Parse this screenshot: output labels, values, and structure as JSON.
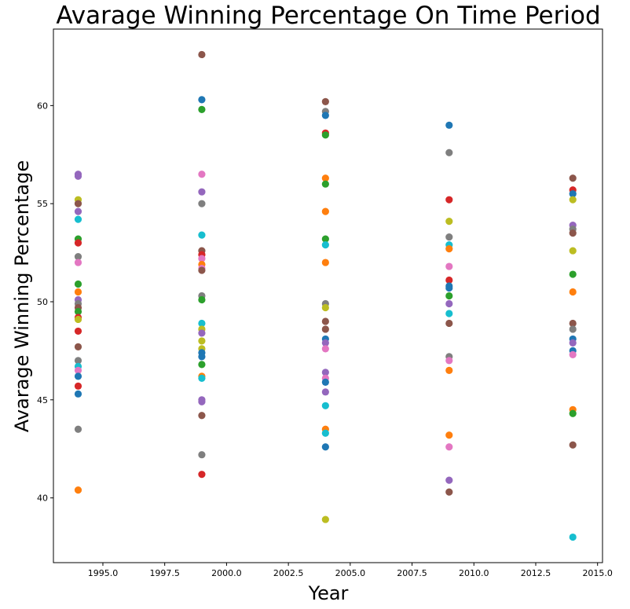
{
  "chart_data": {
    "type": "scatter",
    "title": "Avarage Winning Percentage On Time Period",
    "xlabel": "Year",
    "ylabel": "Avarage Winning Percentage",
    "xlim": [
      1993.0,
      2015.2
    ],
    "ylim": [
      36.7,
      63.9
    ],
    "xticks": [
      1995.0,
      1997.5,
      2000.0,
      2002.5,
      2005.0,
      2007.5,
      2010.0,
      2012.5,
      2015.0
    ],
    "xtick_labels": [
      "1995.0",
      "1997.5",
      "2000.0",
      "2002.5",
      "2005.0",
      "2007.5",
      "2010.0",
      "2012.5",
      "2015.0"
    ],
    "yticks": [
      40,
      45,
      50,
      55,
      60
    ],
    "ytick_labels": [
      "40",
      "45",
      "50",
      "55",
      "60"
    ],
    "grid": false,
    "palette": [
      "#1f77b4",
      "#ff7f0e",
      "#2ca02c",
      "#d62728",
      "#9467bd",
      "#8c564b",
      "#e377c2",
      "#7f7f7f",
      "#bcbd22",
      "#17becf"
    ],
    "groups": [
      {
        "x": 1994,
        "points": [
          {
            "y": 56.5,
            "color": "#9467bd"
          },
          {
            "y": 56.4,
            "color": "#9467bd"
          },
          {
            "y": 55.2,
            "color": "#bcbd22"
          },
          {
            "y": 55.0,
            "color": "#8c564b"
          },
          {
            "y": 54.6,
            "color": "#9467bd"
          },
          {
            "y": 54.2,
            "color": "#17becf"
          },
          {
            "y": 53.2,
            "color": "#2ca02c"
          },
          {
            "y": 53.0,
            "color": "#d62728"
          },
          {
            "y": 52.3,
            "color": "#7f7f7f"
          },
          {
            "y": 52.0,
            "color": "#e377c2"
          },
          {
            "y": 50.9,
            "color": "#2ca02c"
          },
          {
            "y": 50.5,
            "color": "#ff7f0e"
          },
          {
            "y": 50.1,
            "color": "#9467bd"
          },
          {
            "y": 49.9,
            "color": "#7f7f7f"
          },
          {
            "y": 49.7,
            "color": "#8c564b"
          },
          {
            "y": 49.5,
            "color": "#2ca02c"
          },
          {
            "y": 49.2,
            "color": "#d62728"
          },
          {
            "y": 49.1,
            "color": "#bcbd22"
          },
          {
            "y": 48.5,
            "color": "#d62728"
          },
          {
            "y": 47.7,
            "color": "#8c564b"
          },
          {
            "y": 47.0,
            "color": "#7f7f7f"
          },
          {
            "y": 46.7,
            "color": "#17becf"
          },
          {
            "y": 46.5,
            "color": "#e377c2"
          },
          {
            "y": 46.2,
            "color": "#1f77b4"
          },
          {
            "y": 45.7,
            "color": "#d62728"
          },
          {
            "y": 45.3,
            "color": "#1f77b4"
          },
          {
            "y": 43.5,
            "color": "#7f7f7f"
          },
          {
            "y": 40.4,
            "color": "#ff7f0e"
          }
        ]
      },
      {
        "x": 1999,
        "points": [
          {
            "y": 62.6,
            "color": "#8c564b"
          },
          {
            "y": 60.3,
            "color": "#1f77b4"
          },
          {
            "y": 59.8,
            "color": "#2ca02c"
          },
          {
            "y": 56.5,
            "color": "#e377c2"
          },
          {
            "y": 55.6,
            "color": "#9467bd"
          },
          {
            "y": 55.0,
            "color": "#7f7f7f"
          },
          {
            "y": 53.4,
            "color": "#17becf"
          },
          {
            "y": 52.6,
            "color": "#8c564b"
          },
          {
            "y": 52.4,
            "color": "#d62728"
          },
          {
            "y": 52.2,
            "color": "#e377c2"
          },
          {
            "y": 51.9,
            "color": "#ff7f0e"
          },
          {
            "y": 51.7,
            "color": "#e377c2"
          },
          {
            "y": 51.6,
            "color": "#8c564b"
          },
          {
            "y": 50.3,
            "color": "#7f7f7f"
          },
          {
            "y": 50.1,
            "color": "#2ca02c"
          },
          {
            "y": 48.9,
            "color": "#17becf"
          },
          {
            "y": 48.6,
            "color": "#bcbd22"
          },
          {
            "y": 48.4,
            "color": "#9467bd"
          },
          {
            "y": 48.0,
            "color": "#bcbd22"
          },
          {
            "y": 47.6,
            "color": "#bcbd22"
          },
          {
            "y": 47.4,
            "color": "#1f77b4"
          },
          {
            "y": 47.2,
            "color": "#1f77b4"
          },
          {
            "y": 46.8,
            "color": "#2ca02c"
          },
          {
            "y": 46.2,
            "color": "#ff7f0e"
          },
          {
            "y": 46.1,
            "color": "#17becf"
          },
          {
            "y": 45.0,
            "color": "#9467bd"
          },
          {
            "y": 44.9,
            "color": "#9467bd"
          },
          {
            "y": 44.2,
            "color": "#8c564b"
          },
          {
            "y": 42.2,
            "color": "#7f7f7f"
          },
          {
            "y": 41.2,
            "color": "#d62728"
          }
        ]
      },
      {
        "x": 2004,
        "points": [
          {
            "y": 60.2,
            "color": "#8c564b"
          },
          {
            "y": 59.7,
            "color": "#7f7f7f"
          },
          {
            "y": 59.5,
            "color": "#1f77b4"
          },
          {
            "y": 58.6,
            "color": "#d62728"
          },
          {
            "y": 58.5,
            "color": "#2ca02c"
          },
          {
            "y": 56.3,
            "color": "#ff7f0e"
          },
          {
            "y": 56.0,
            "color": "#2ca02c"
          },
          {
            "y": 54.6,
            "color": "#ff7f0e"
          },
          {
            "y": 53.2,
            "color": "#2ca02c"
          },
          {
            "y": 52.9,
            "color": "#17becf"
          },
          {
            "y": 52.0,
            "color": "#ff7f0e"
          },
          {
            "y": 49.9,
            "color": "#7f7f7f"
          },
          {
            "y": 49.7,
            "color": "#bcbd22"
          },
          {
            "y": 49.0,
            "color": "#8c564b"
          },
          {
            "y": 48.6,
            "color": "#8c564b"
          },
          {
            "y": 48.1,
            "color": "#1f77b4"
          },
          {
            "y": 47.9,
            "color": "#9467bd"
          },
          {
            "y": 47.6,
            "color": "#e377c2"
          },
          {
            "y": 46.4,
            "color": "#9467bd"
          },
          {
            "y": 46.1,
            "color": "#e377c2"
          },
          {
            "y": 45.9,
            "color": "#1f77b4"
          },
          {
            "y": 45.4,
            "color": "#9467bd"
          },
          {
            "y": 44.7,
            "color": "#17becf"
          },
          {
            "y": 43.5,
            "color": "#ff7f0e"
          },
          {
            "y": 43.3,
            "color": "#17becf"
          },
          {
            "y": 42.6,
            "color": "#1f77b4"
          },
          {
            "y": 38.9,
            "color": "#bcbd22"
          }
        ]
      },
      {
        "x": 2009,
        "points": [
          {
            "y": 59.0,
            "color": "#1f77b4"
          },
          {
            "y": 57.6,
            "color": "#7f7f7f"
          },
          {
            "y": 55.2,
            "color": "#d62728"
          },
          {
            "y": 54.1,
            "color": "#bcbd22"
          },
          {
            "y": 53.3,
            "color": "#7f7f7f"
          },
          {
            "y": 52.9,
            "color": "#17becf"
          },
          {
            "y": 52.7,
            "color": "#ff7f0e"
          },
          {
            "y": 51.8,
            "color": "#e377c2"
          },
          {
            "y": 51.1,
            "color": "#d62728"
          },
          {
            "y": 50.8,
            "color": "#1f77b4"
          },
          {
            "y": 50.7,
            "color": "#1f77b4"
          },
          {
            "y": 50.3,
            "color": "#2ca02c"
          },
          {
            "y": 49.9,
            "color": "#9467bd"
          },
          {
            "y": 49.4,
            "color": "#17becf"
          },
          {
            "y": 48.9,
            "color": "#8c564b"
          },
          {
            "y": 47.2,
            "color": "#7f7f7f"
          },
          {
            "y": 47.0,
            "color": "#e377c2"
          },
          {
            "y": 46.5,
            "color": "#ff7f0e"
          },
          {
            "y": 43.2,
            "color": "#ff7f0e"
          },
          {
            "y": 42.6,
            "color": "#e377c2"
          },
          {
            "y": 40.9,
            "color": "#9467bd"
          },
          {
            "y": 40.3,
            "color": "#8c564b"
          }
        ]
      },
      {
        "x": 2014,
        "points": [
          {
            "y": 56.3,
            "color": "#8c564b"
          },
          {
            "y": 55.7,
            "color": "#d62728"
          },
          {
            "y": 55.5,
            "color": "#1f77b4"
          },
          {
            "y": 55.2,
            "color": "#bcbd22"
          },
          {
            "y": 53.9,
            "color": "#9467bd"
          },
          {
            "y": 53.7,
            "color": "#7f7f7f"
          },
          {
            "y": 53.5,
            "color": "#8c564b"
          },
          {
            "y": 52.6,
            "color": "#bcbd22"
          },
          {
            "y": 51.4,
            "color": "#2ca02c"
          },
          {
            "y": 50.5,
            "color": "#ff7f0e"
          },
          {
            "y": 48.9,
            "color": "#8c564b"
          },
          {
            "y": 48.6,
            "color": "#7f7f7f"
          },
          {
            "y": 48.1,
            "color": "#1f77b4"
          },
          {
            "y": 47.9,
            "color": "#9467bd"
          },
          {
            "y": 47.5,
            "color": "#1f77b4"
          },
          {
            "y": 47.3,
            "color": "#e377c2"
          },
          {
            "y": 44.5,
            "color": "#ff7f0e"
          },
          {
            "y": 44.3,
            "color": "#2ca02c"
          },
          {
            "y": 42.7,
            "color": "#8c564b"
          },
          {
            "y": 38.0,
            "color": "#17becf"
          }
        ]
      }
    ]
  }
}
